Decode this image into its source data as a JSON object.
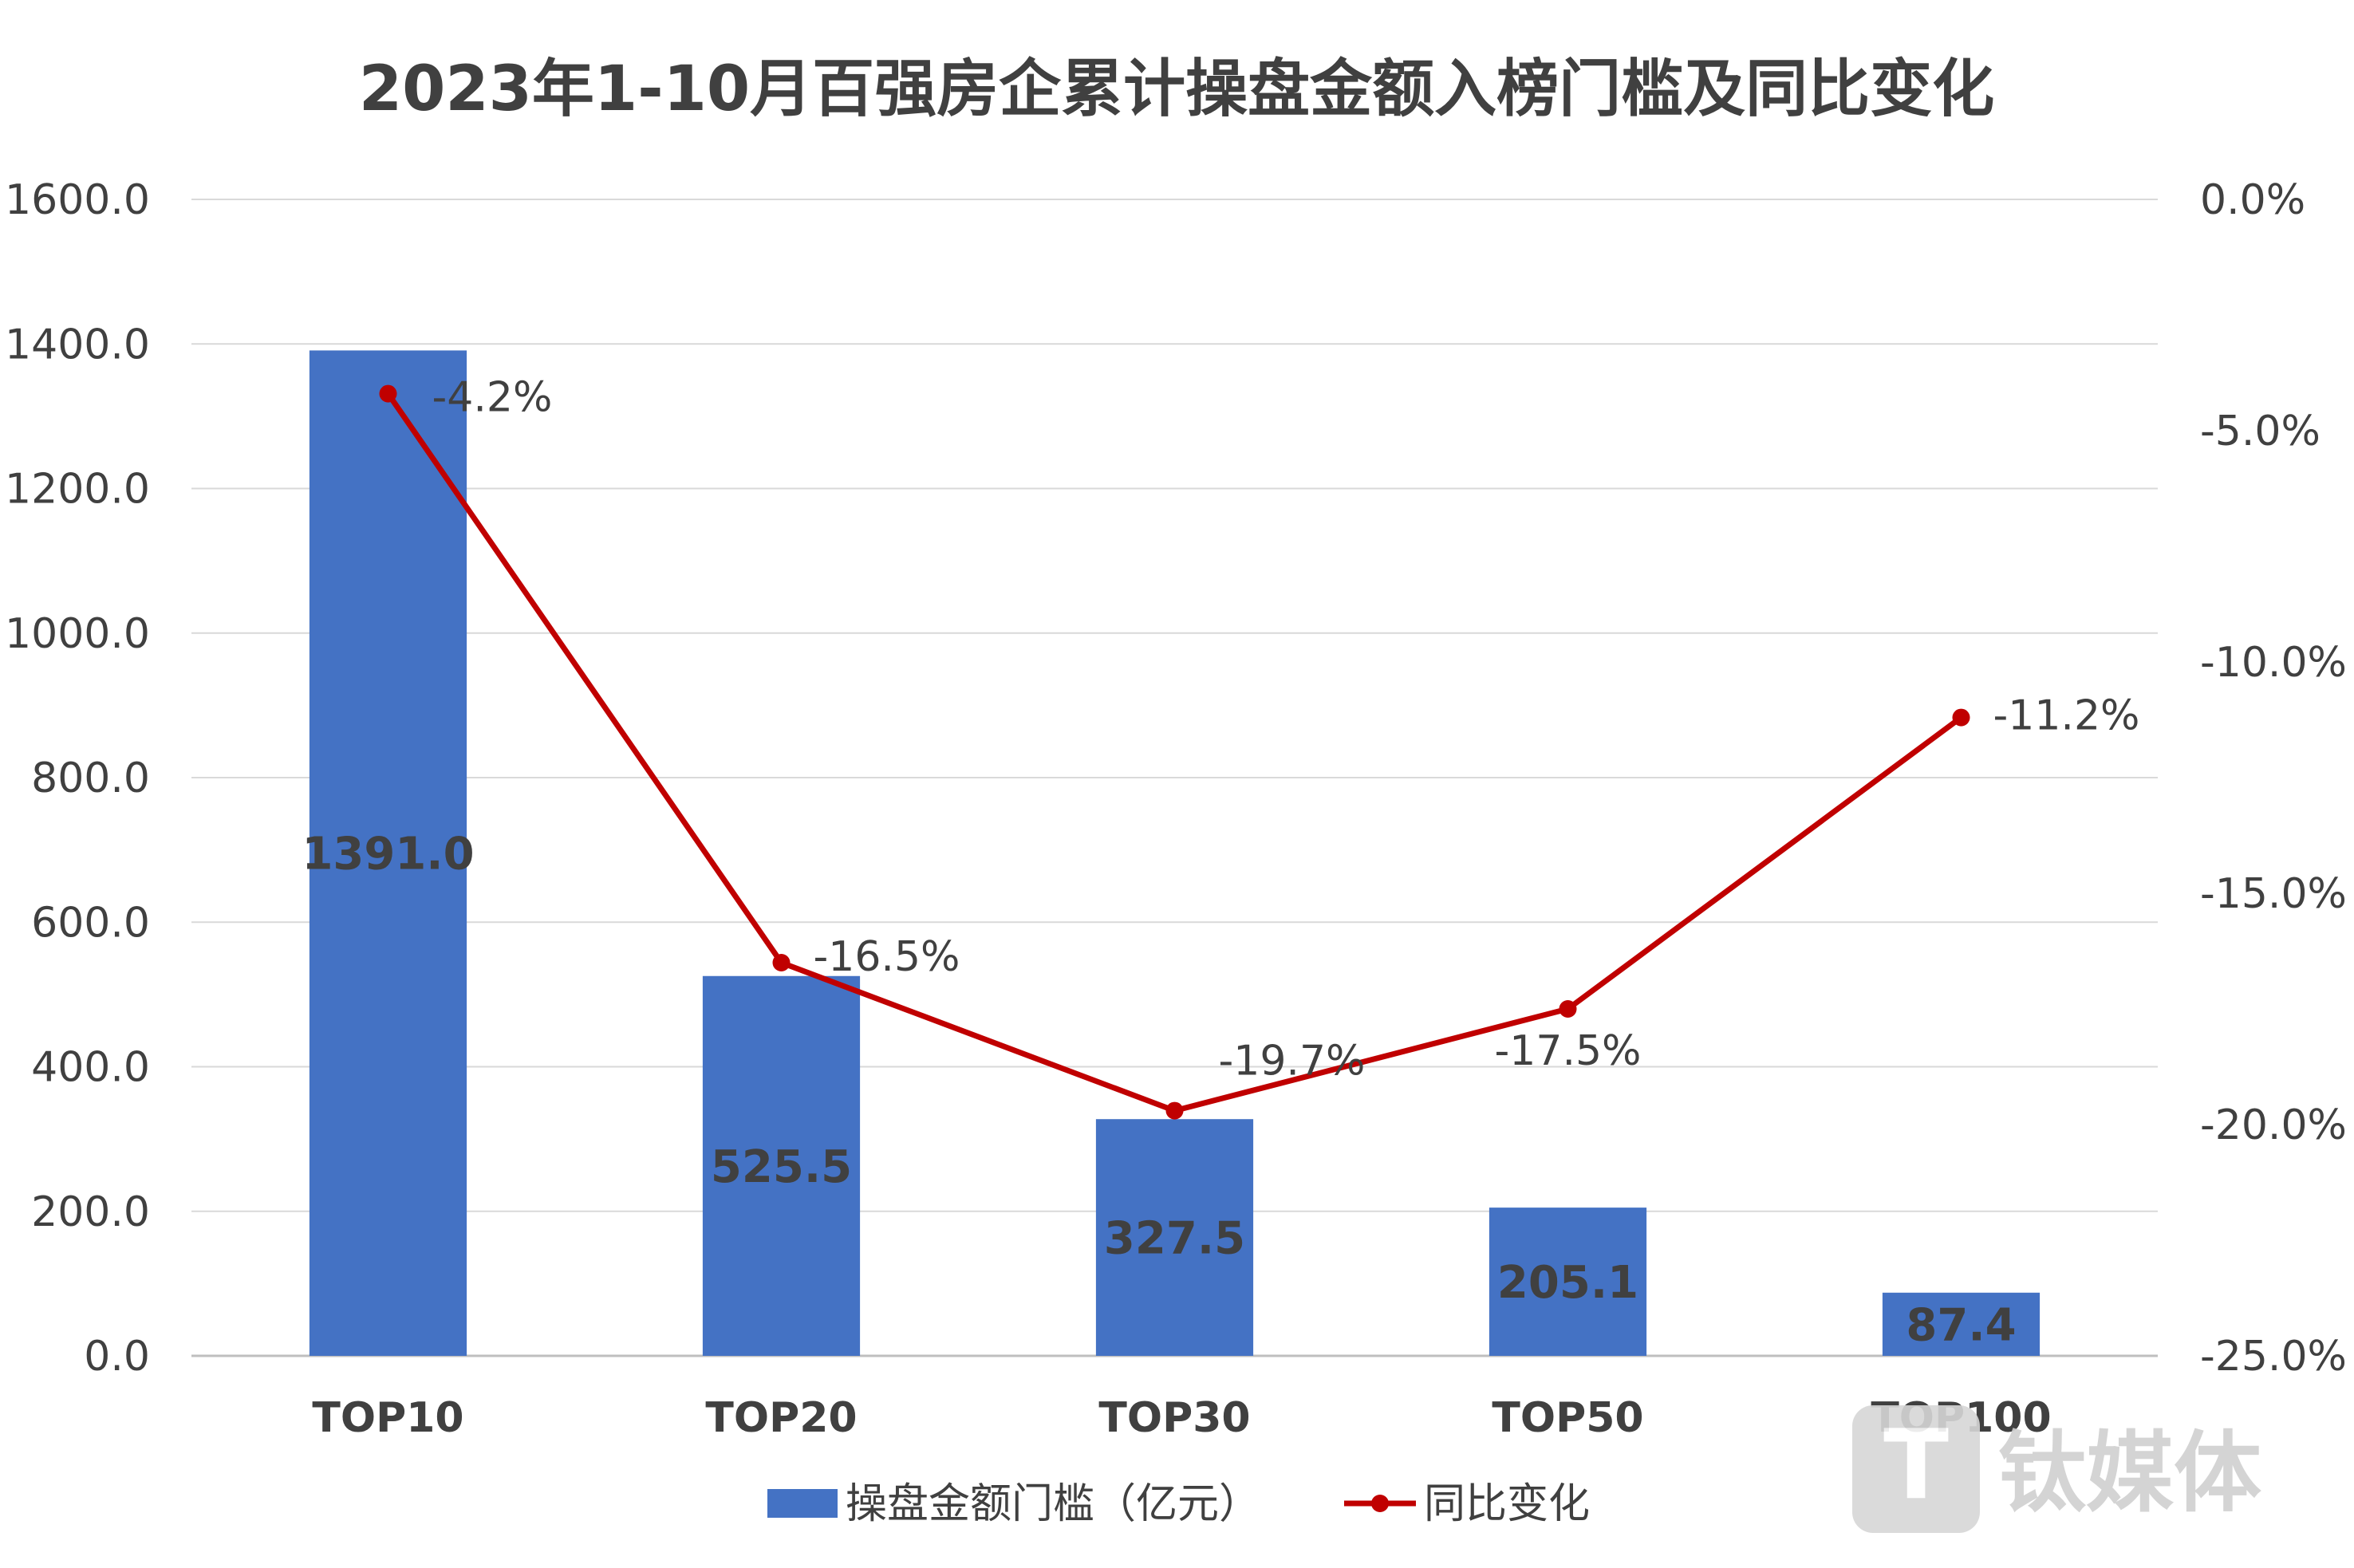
{
  "chart_data": {
    "type": "bar",
    "title": "2023年1-10月百强房企累计操盘金额入榜门槛及同比变化",
    "categories": [
      "TOP10",
      "TOP20",
      "TOP30",
      "TOP50",
      "TOP100"
    ],
    "series": [
      {
        "name": "操盘金额门槛（亿元）",
        "type": "bar",
        "axis": "left",
        "values": [
          1391.0,
          525.5,
          327.5,
          205.1,
          87.4
        ],
        "labels": [
          "1391.0",
          "525.5",
          "327.5",
          "205.1",
          "87.4"
        ],
        "color": "#4472C4"
      },
      {
        "name": "同比变化",
        "type": "line",
        "axis": "right",
        "values": [
          -4.2,
          -16.5,
          -19.7,
          -17.5,
          -11.2
        ],
        "labels": [
          "-4.2%",
          "-16.5%",
          "-19.7%",
          "-17.5%",
          "-11.2%"
        ],
        "color": "#C00000"
      }
    ],
    "left_axis": {
      "ylim": [
        0,
        1600
      ],
      "ticks": [
        "0.0",
        "200.0",
        "400.0",
        "600.0",
        "800.0",
        "1000.0",
        "1200.0",
        "1400.0",
        "1600.0"
      ]
    },
    "right_axis": {
      "ylim": [
        -25,
        0
      ],
      "ticks": [
        "-25.0%",
        "-20.0%",
        "-15.0%",
        "-10.0%",
        "-5.0%",
        "0.0%"
      ]
    },
    "grid": true,
    "legend_position": "bottom"
  },
  "watermark": {
    "text": "钛媒体",
    "logo_letter": "T"
  }
}
